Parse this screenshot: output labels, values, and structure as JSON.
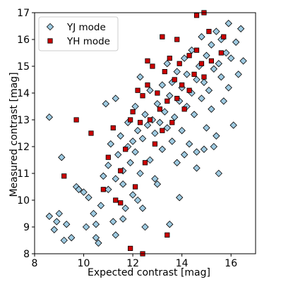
{
  "chart_data": {
    "type": "scatter",
    "xlabel": "Expected contrast [mag]",
    "ylabel": "Measured contrast [mag]",
    "xlim": [
      8,
      17
    ],
    "ylim": [
      8,
      17
    ],
    "xticks": [
      "8",
      "10",
      "12",
      "14",
      "16"
    ],
    "yticks": [
      "8",
      "9",
      "10",
      "11",
      "12",
      "13",
      "14",
      "15",
      "16",
      "17"
    ],
    "grid": false,
    "legend_position": "top-left",
    "series": [
      {
        "name": "YJ mode",
        "marker": "diamond",
        "color": "#9ecae1",
        "edgecolor": "#000000",
        "points": [
          [
            8.6,
            9.4
          ],
          [
            8.6,
            13.1
          ],
          [
            8.8,
            8.9
          ],
          [
            8.9,
            9.2
          ],
          [
            9.0,
            9.5
          ],
          [
            9.1,
            11.6
          ],
          [
            9.2,
            8.5
          ],
          [
            9.3,
            9.1
          ],
          [
            9.5,
            8.6
          ],
          [
            9.7,
            10.5
          ],
          [
            9.8,
            10.4
          ],
          [
            10.0,
            10.3
          ],
          [
            10.1,
            9.0
          ],
          [
            10.2,
            10.1
          ],
          [
            10.4,
            9.5
          ],
          [
            10.5,
            9.1
          ],
          [
            10.6,
            8.4
          ],
          [
            10.7,
            9.8
          ],
          [
            10.8,
            10.9
          ],
          [
            10.9,
            13.6
          ],
          [
            11.0,
            10.4
          ],
          [
            11.0,
            11.3
          ],
          [
            11.1,
            12.1
          ],
          [
            11.2,
            9.2
          ],
          [
            11.3,
            10.8
          ],
          [
            11.3,
            13.8
          ],
          [
            11.4,
            11.7
          ],
          [
            11.5,
            12.4
          ],
          [
            11.6,
            10.6
          ],
          [
            11.6,
            11.1
          ],
          [
            11.7,
            9.7
          ],
          [
            11.8,
            12.0
          ],
          [
            11.8,
            12.9
          ],
          [
            11.9,
            11.4
          ],
          [
            12.0,
            10.2
          ],
          [
            12.0,
            12.2
          ],
          [
            12.1,
            11.8
          ],
          [
            12.1,
            13.5
          ],
          [
            12.2,
            12.6
          ],
          [
            12.3,
            11.0
          ],
          [
            12.3,
            14.6
          ],
          [
            12.4,
            12.3
          ],
          [
            12.5,
            13.2
          ],
          [
            12.5,
            9.0
          ],
          [
            12.6,
            12.8
          ],
          [
            12.7,
            11.5
          ],
          [
            12.7,
            14.1
          ],
          [
            12.8,
            13.0
          ],
          [
            12.9,
            12.5
          ],
          [
            13.0,
            13.6
          ],
          [
            13.0,
            10.6
          ],
          [
            13.1,
            12.9
          ],
          [
            13.2,
            14.3
          ],
          [
            13.2,
            11.9
          ],
          [
            13.3,
            13.3
          ],
          [
            13.4,
            12.7
          ],
          [
            13.4,
            15.1
          ],
          [
            13.5,
            13.9
          ],
          [
            13.6,
            12.2
          ],
          [
            13.6,
            14.4
          ],
          [
            13.7,
            13.1
          ],
          [
            13.8,
            14.8
          ],
          [
            13.8,
            11.4
          ],
          [
            13.9,
            13.7
          ],
          [
            14.0,
            14.2
          ],
          [
            14.0,
            12.6
          ],
          [
            14.1,
            15.3
          ],
          [
            14.2,
            13.5
          ],
          [
            14.2,
            14.7
          ],
          [
            14.3,
            12.1
          ],
          [
            14.4,
            14.0
          ],
          [
            14.4,
            15.6
          ],
          [
            14.5,
            13.2
          ],
          [
            14.6,
            14.5
          ],
          [
            14.6,
            11.8
          ],
          [
            14.7,
            15.0
          ],
          [
            14.8,
            13.8
          ],
          [
            14.8,
            16.1
          ],
          [
            14.9,
            14.4
          ],
          [
            15.0,
            12.7
          ],
          [
            15.0,
            15.4
          ],
          [
            15.1,
            14.1
          ],
          [
            15.2,
            15.8
          ],
          [
            15.2,
            13.4
          ],
          [
            15.3,
            14.9
          ],
          [
            15.4,
            16.3
          ],
          [
            15.4,
            12.4
          ],
          [
            15.5,
            15.1
          ],
          [
            15.6,
            14.6
          ],
          [
            15.6,
            16.0
          ],
          [
            15.7,
            13.7
          ],
          [
            15.8,
            15.5
          ],
          [
            15.9,
            16.6
          ],
          [
            15.9,
            14.2
          ],
          [
            16.0,
            15.3
          ],
          [
            16.1,
            12.8
          ],
          [
            16.2,
            15.9
          ],
          [
            16.3,
            14.7
          ],
          [
            16.4,
            16.4
          ],
          [
            16.5,
            15.2
          ],
          [
            14.1,
            11.7
          ],
          [
            13.5,
            9.1
          ],
          [
            14.6,
            11.2
          ],
          [
            11.6,
            9.3
          ],
          [
            10.5,
            8.6
          ],
          [
            12.4,
            9.7
          ],
          [
            15.3,
            12.0
          ],
          [
            15.5,
            11.0
          ],
          [
            14.9,
            11.9
          ],
          [
            12.9,
            10.8
          ],
          [
            13.9,
            10.1
          ],
          [
            12.2,
            10.0
          ],
          [
            11.3,
            8.7
          ]
        ]
      },
      {
        "name": "YH mode",
        "marker": "square",
        "color": "#cc0000",
        "edgecolor": "#000000",
        "points": [
          [
            9.2,
            10.9
          ],
          [
            9.7,
            13.0
          ],
          [
            10.3,
            12.5
          ],
          [
            10.8,
            10.4
          ],
          [
            11.0,
            11.6
          ],
          [
            11.2,
            12.7
          ],
          [
            11.3,
            10.0
          ],
          [
            11.5,
            11.1
          ],
          [
            11.5,
            9.9
          ],
          [
            11.7,
            11.9
          ],
          [
            11.9,
            8.2
          ],
          [
            12.0,
            13.3
          ],
          [
            12.1,
            10.5
          ],
          [
            12.3,
            12.9
          ],
          [
            12.4,
            13.9
          ],
          [
            12.4,
            8.0
          ],
          [
            12.5,
            11.4
          ],
          [
            12.6,
            14.3
          ],
          [
            12.7,
            13.0
          ],
          [
            12.8,
            15.0
          ],
          [
            12.9,
            12.1
          ],
          [
            13.0,
            14.0
          ],
          [
            13.1,
            13.4
          ],
          [
            13.2,
            12.6
          ],
          [
            13.3,
            14.8
          ],
          [
            13.4,
            8.7
          ],
          [
            13.4,
            13.7
          ],
          [
            13.5,
            15.3
          ],
          [
            13.6,
            12.9
          ],
          [
            13.7,
            14.5
          ],
          [
            13.8,
            13.8
          ],
          [
            13.9,
            15.1
          ],
          [
            14.0,
            14.3
          ],
          [
            14.1,
            13.4
          ],
          [
            14.3,
            15.4
          ],
          [
            14.3,
            14.1
          ],
          [
            14.5,
            14.7
          ],
          [
            14.6,
            15.6
          ],
          [
            14.8,
            15.1
          ],
          [
            14.9,
            14.6
          ],
          [
            15.1,
            16.3
          ],
          [
            15.2,
            15.2
          ],
          [
            15.6,
            15.5
          ],
          [
            15.7,
            16.1
          ],
          [
            13.2,
            16.1
          ],
          [
            12.6,
            15.2
          ],
          [
            12.2,
            14.1
          ],
          [
            11.9,
            13.0
          ],
          [
            13.8,
            16.0
          ],
          [
            14.6,
            16.9
          ],
          [
            14.9,
            17.0
          ]
        ]
      }
    ]
  }
}
